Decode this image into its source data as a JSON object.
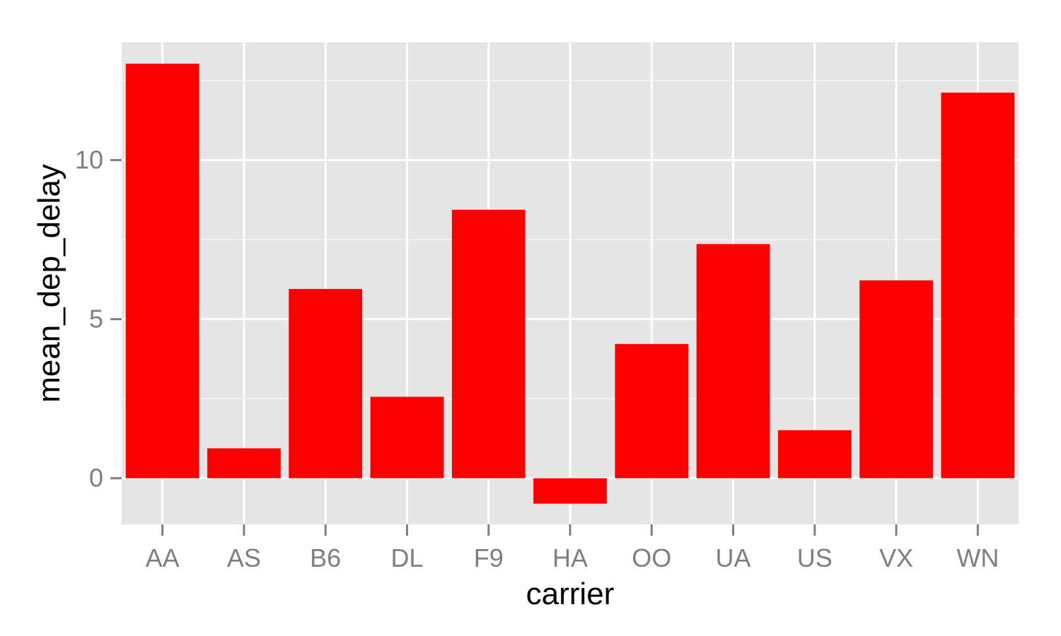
{
  "colors": {
    "panel_background": "#e5e5e5",
    "grid_line": "#ffffff",
    "bar_fill": "#ff0000",
    "tick_text": "#7f7f7f",
    "axis_title": "#000000"
  },
  "chart_data": {
    "type": "bar",
    "xlabel": "carrier",
    "ylabel": "mean_dep_delay",
    "categories": [
      "AA",
      "AS",
      "B6",
      "DL",
      "F9",
      "HA",
      "OO",
      "UA",
      "US",
      "VX",
      "WN"
    ],
    "values": [
      13.03,
      0.94,
      5.95,
      2.56,
      8.44,
      -0.8,
      4.22,
      7.36,
      1.51,
      6.22,
      12.12
    ],
    "ylim": [
      -1.45,
      13.7
    ],
    "y_ticks": [
      0,
      5,
      10
    ],
    "y_minor_ticks": [
      2.5,
      7.5,
      12.5
    ],
    "grid": true,
    "legend": "none"
  }
}
